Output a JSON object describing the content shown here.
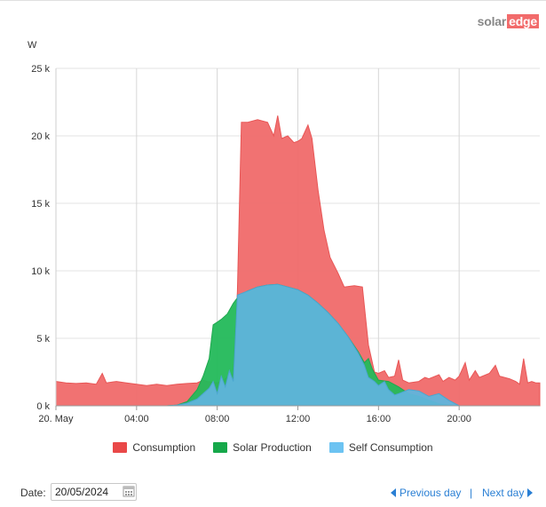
{
  "brand": {
    "part1": "solar",
    "part2": "edge"
  },
  "unit_label": "W",
  "chart_data": {
    "type": "area",
    "ylabel": "W",
    "ylim": [
      0,
      25000
    ],
    "y_ticks": [
      "0 k",
      "5 k",
      "10 k",
      "15 k",
      "20 k",
      "25 k"
    ],
    "x_ticks": [
      "20. May",
      "04:00",
      "08:00",
      "12:00",
      "16:00",
      "20:00"
    ],
    "x_unit": "hour",
    "xlim": [
      0,
      24
    ],
    "grid": true,
    "legend_position": "bottom",
    "series": [
      {
        "name": "Consumption",
        "color": "#f06a6a",
        "points": [
          [
            0,
            1800
          ],
          [
            0.5,
            1700
          ],
          [
            1,
            1650
          ],
          [
            1.5,
            1700
          ],
          [
            2,
            1600
          ],
          [
            2.3,
            2400
          ],
          [
            2.5,
            1700
          ],
          [
            3,
            1800
          ],
          [
            3.5,
            1700
          ],
          [
            4,
            1600
          ],
          [
            4.5,
            1500
          ],
          [
            5,
            1600
          ],
          [
            5.5,
            1500
          ],
          [
            6,
            1600
          ],
          [
            6.5,
            1650
          ],
          [
            7,
            1700
          ],
          [
            7.3,
            1900
          ],
          [
            7.5,
            1800
          ],
          [
            8,
            1700
          ],
          [
            8.3,
            1900
          ],
          [
            8.5,
            2100
          ],
          [
            8.8,
            2400
          ],
          [
            9,
            8500
          ],
          [
            9.2,
            21000
          ],
          [
            9.5,
            21000
          ],
          [
            10,
            21200
          ],
          [
            10.5,
            21000
          ],
          [
            10.8,
            20000
          ],
          [
            11,
            21500
          ],
          [
            11.2,
            19800
          ],
          [
            11.5,
            20000
          ],
          [
            11.8,
            19500
          ],
          [
            12,
            19600
          ],
          [
            12.2,
            19800
          ],
          [
            12.5,
            20800
          ],
          [
            12.7,
            19800
          ],
          [
            13,
            16000
          ],
          [
            13.3,
            13000
          ],
          [
            13.6,
            11000
          ],
          [
            14,
            9800
          ],
          [
            14.3,
            8800
          ],
          [
            14.8,
            8900
          ],
          [
            15.2,
            8800
          ],
          [
            15.5,
            4500
          ],
          [
            15.8,
            2500
          ],
          [
            16,
            2400
          ],
          [
            16.3,
            2600
          ],
          [
            16.5,
            2100
          ],
          [
            16.8,
            2200
          ],
          [
            17,
            3400
          ],
          [
            17.2,
            1900
          ],
          [
            17.5,
            1700
          ],
          [
            18,
            1800
          ],
          [
            18.3,
            2100
          ],
          [
            18.5,
            2000
          ],
          [
            19,
            2300
          ],
          [
            19.2,
            1800
          ],
          [
            19.5,
            2100
          ],
          [
            19.8,
            1900
          ],
          [
            20,
            2200
          ],
          [
            20.3,
            3200
          ],
          [
            20.5,
            1900
          ],
          [
            20.8,
            2600
          ],
          [
            21,
            2100
          ],
          [
            21.5,
            2400
          ],
          [
            21.8,
            3000
          ],
          [
            22,
            2200
          ],
          [
            22.5,
            2000
          ],
          [
            22.8,
            1800
          ],
          [
            23,
            1600
          ],
          [
            23.2,
            3500
          ],
          [
            23.4,
            1700
          ],
          [
            23.6,
            1800
          ],
          [
            23.8,
            1700
          ],
          [
            24,
            1700
          ]
        ]
      },
      {
        "name": "Solar Production",
        "color": "#23b95a",
        "points": [
          [
            5.5,
            0
          ],
          [
            6,
            50
          ],
          [
            6.5,
            300
          ],
          [
            7,
            1200
          ],
          [
            7.3,
            2200
          ],
          [
            7.6,
            3500
          ],
          [
            7.8,
            6000
          ],
          [
            8,
            6200
          ],
          [
            8.2,
            6400
          ],
          [
            8.5,
            6800
          ],
          [
            8.8,
            7600
          ],
          [
            9,
            8000
          ],
          [
            9.5,
            8500
          ],
          [
            10,
            8800
          ],
          [
            10.5,
            8950
          ],
          [
            11,
            9000
          ],
          [
            11.5,
            8800
          ],
          [
            12,
            8600
          ],
          [
            12.5,
            8200
          ],
          [
            13,
            7600
          ],
          [
            13.5,
            6900
          ],
          [
            14,
            6100
          ],
          [
            14.5,
            5100
          ],
          [
            15,
            4000
          ],
          [
            15.3,
            3200
          ],
          [
            15.5,
            3500
          ],
          [
            15.7,
            2700
          ],
          [
            16,
            1900
          ],
          [
            16.5,
            1800
          ],
          [
            17,
            1400
          ],
          [
            17.5,
            900
          ],
          [
            18,
            700
          ],
          [
            18.5,
            400
          ],
          [
            19,
            150
          ],
          [
            19.5,
            50
          ],
          [
            20,
            0
          ]
        ]
      },
      {
        "name": "Self Consumption",
        "color": "#5fb4dc",
        "points": [
          [
            5.5,
            0
          ],
          [
            6,
            50
          ],
          [
            6.5,
            200
          ],
          [
            7,
            500
          ],
          [
            7.3,
            900
          ],
          [
            7.6,
            1300
          ],
          [
            7.8,
            1800
          ],
          [
            8,
            900
          ],
          [
            8.2,
            2200
          ],
          [
            8.4,
            1400
          ],
          [
            8.6,
            2600
          ],
          [
            8.8,
            1800
          ],
          [
            9,
            8200
          ],
          [
            9.5,
            8500
          ],
          [
            10,
            8800
          ],
          [
            10.5,
            8950
          ],
          [
            11,
            9000
          ],
          [
            11.5,
            8800
          ],
          [
            12,
            8600
          ],
          [
            12.5,
            8200
          ],
          [
            13,
            7600
          ],
          [
            13.5,
            6900
          ],
          [
            14,
            6100
          ],
          [
            14.5,
            5100
          ],
          [
            15,
            3900
          ],
          [
            15.3,
            3000
          ],
          [
            15.5,
            2100
          ],
          [
            15.8,
            1800
          ],
          [
            16,
            1500
          ],
          [
            16.3,
            1800
          ],
          [
            16.5,
            1200
          ],
          [
            16.8,
            800
          ],
          [
            17,
            900
          ],
          [
            17.5,
            1200
          ],
          [
            18,
            1100
          ],
          [
            18.5,
            700
          ],
          [
            19,
            900
          ],
          [
            19.5,
            400
          ],
          [
            20,
            0
          ]
        ]
      }
    ]
  },
  "legend": [
    {
      "label": "Consumption",
      "color": "#e94848"
    },
    {
      "label": "Solar Production",
      "color": "#16a84a"
    },
    {
      "label": "Self Consumption",
      "color": "#6cc3f2"
    }
  ],
  "controls": {
    "date_label": "Date:",
    "date_value": "20/05/2024",
    "prev_label": "Previous day",
    "separator": "|",
    "next_label": "Next day"
  }
}
